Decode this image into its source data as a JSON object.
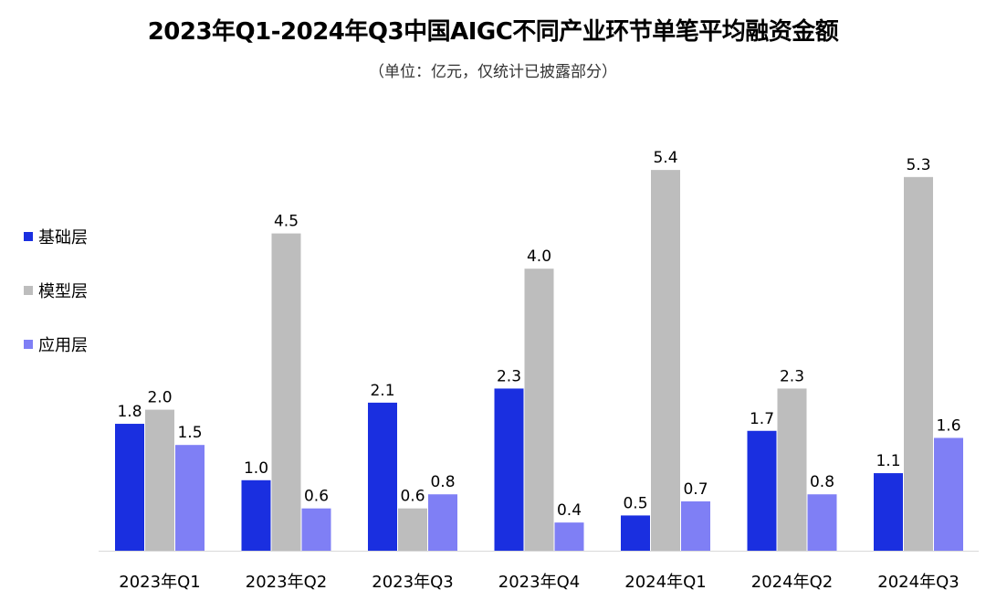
{
  "chart_data": {
    "type": "bar",
    "title": "2023年Q1-2024年Q3中国AIGC不同产业环节单笔平均融资金额",
    "subtitle": "（单位：亿元，仅统计已披露部分）",
    "categories": [
      "2023年Q1",
      "2023年Q2",
      "2023年Q3",
      "2023年Q4",
      "2024年Q1",
      "2024年Q2",
      "2024年Q3"
    ],
    "series": [
      {
        "name": "基础层",
        "color": "#1a2fe0",
        "values": [
          1.8,
          1.0,
          2.1,
          2.3,
          0.5,
          1.7,
          1.1
        ]
      },
      {
        "name": "模型层",
        "color": "#bdbdbd",
        "values": [
          2.0,
          4.5,
          0.6,
          4.0,
          5.4,
          2.3,
          5.3
        ]
      },
      {
        "name": "应用层",
        "color": "#7f7ff5",
        "values": [
          1.5,
          0.6,
          0.8,
          0.4,
          0.7,
          0.8,
          1.6
        ]
      }
    ],
    "ylim": [
      0,
      5.4
    ],
    "grid": false,
    "legend_position": "left"
  }
}
